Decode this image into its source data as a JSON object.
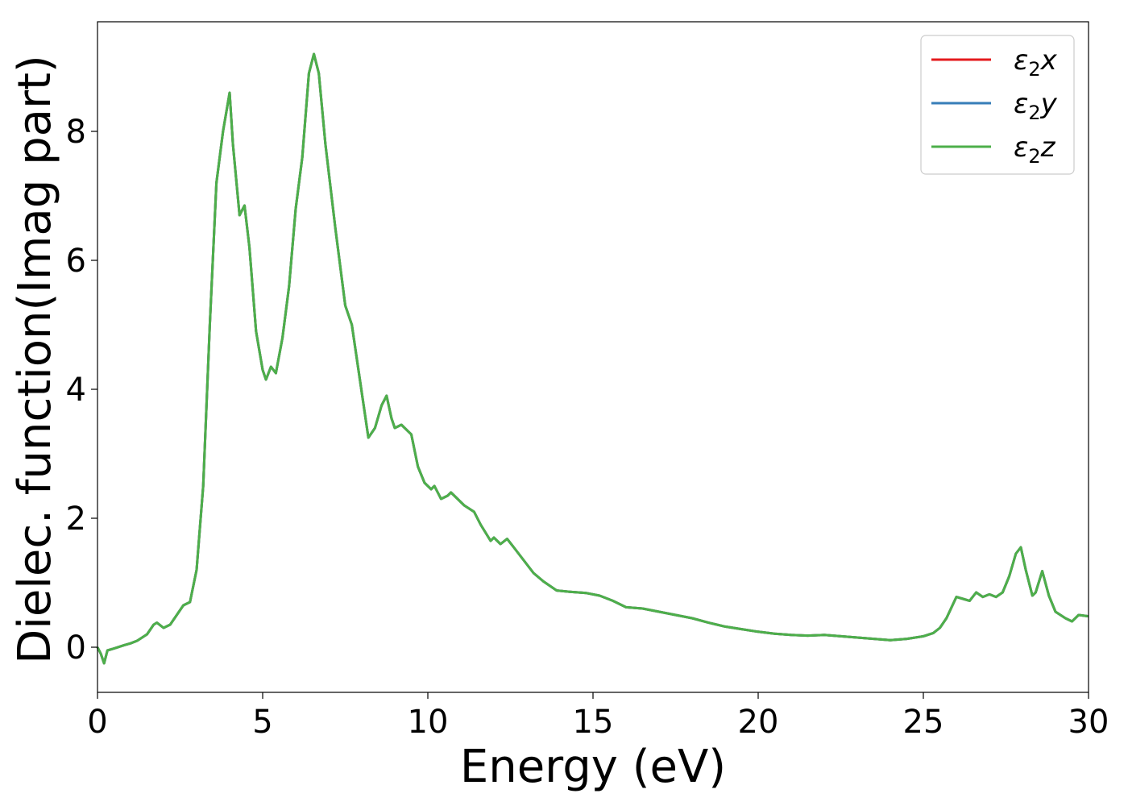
{
  "chart_data": {
    "type": "line",
    "title": "",
    "xlabel": "Energy (eV)",
    "ylabel": "Dielec. function(Imag part)",
    "xlim": [
      0,
      30
    ],
    "ylim": [
      -0.7,
      9.7
    ],
    "xticks": [
      0,
      5,
      10,
      15,
      20,
      25,
      30
    ],
    "xtick_labels": [
      "0",
      "5",
      "10",
      "15",
      "20",
      "25",
      "30"
    ],
    "yticks": [
      0,
      2,
      4,
      6,
      8
    ],
    "ytick_labels": [
      "0",
      "2",
      "4",
      "6",
      "8"
    ],
    "grid": false,
    "legend_position": "top-right",
    "x": [
      0,
      0.1,
      0.2,
      0.3,
      0.5,
      0.8,
      1.0,
      1.2,
      1.5,
      1.7,
      1.8,
      2.0,
      2.2,
      2.4,
      2.6,
      2.8,
      3.0,
      3.2,
      3.4,
      3.6,
      3.8,
      4.0,
      4.1,
      4.3,
      4.45,
      4.6,
      4.8,
      5.0,
      5.1,
      5.25,
      5.4,
      5.6,
      5.8,
      6.0,
      6.2,
      6.4,
      6.55,
      6.7,
      6.9,
      7.2,
      7.5,
      7.7,
      7.9,
      8.1,
      8.2,
      8.4,
      8.6,
      8.75,
      8.9,
      9.0,
      9.2,
      9.5,
      9.7,
      9.9,
      10.1,
      10.2,
      10.4,
      10.6,
      10.7,
      10.9,
      11.1,
      11.4,
      11.6,
      11.9,
      12.0,
      12.2,
      12.4,
      12.6,
      12.9,
      13.2,
      13.5,
      13.9,
      14.3,
      14.8,
      15.2,
      15.6,
      16.0,
      16.5,
      17.0,
      17.5,
      18.0,
      18.5,
      19.0,
      19.5,
      20.0,
      20.5,
      21.0,
      21.5,
      22.0,
      22.5,
      23.0,
      23.5,
      24.0,
      24.5,
      25.0,
      25.3,
      25.5,
      25.7,
      26.0,
      26.2,
      26.4,
      26.6,
      26.8,
      27.0,
      27.2,
      27.4,
      27.6,
      27.8,
      27.95,
      28.1,
      28.3,
      28.4,
      28.6,
      28.8,
      29.0,
      29.3,
      29.5,
      29.7,
      30.0
    ],
    "series": [
      {
        "name": "ε₂x",
        "color": "#e41a1c",
        "y": [
          0,
          -0.1,
          -0.25,
          -0.05,
          -0.02,
          0.03,
          0.06,
          0.1,
          0.2,
          0.35,
          0.38,
          0.3,
          0.35,
          0.5,
          0.65,
          0.7,
          1.2,
          2.5,
          5.0,
          7.2,
          8.0,
          8.6,
          7.8,
          6.7,
          6.85,
          6.2,
          4.9,
          4.3,
          4.15,
          4.35,
          4.25,
          4.8,
          5.6,
          6.8,
          7.6,
          8.9,
          9.2,
          8.9,
          7.8,
          6.5,
          5.3,
          5.0,
          4.3,
          3.6,
          3.25,
          3.4,
          3.75,
          3.9,
          3.55,
          3.4,
          3.45,
          3.3,
          2.8,
          2.55,
          2.45,
          2.5,
          2.3,
          2.35,
          2.4,
          2.3,
          2.2,
          2.1,
          1.9,
          1.65,
          1.7,
          1.6,
          1.68,
          1.55,
          1.35,
          1.15,
          1.02,
          0.88,
          0.86,
          0.84,
          0.8,
          0.72,
          0.62,
          0.6,
          0.55,
          0.5,
          0.45,
          0.38,
          0.32,
          0.28,
          0.24,
          0.21,
          0.19,
          0.18,
          0.19,
          0.17,
          0.15,
          0.13,
          0.11,
          0.13,
          0.17,
          0.22,
          0.3,
          0.45,
          0.78,
          0.75,
          0.72,
          0.85,
          0.78,
          0.82,
          0.78,
          0.85,
          1.1,
          1.45,
          1.55,
          1.2,
          0.8,
          0.85,
          1.18,
          0.8,
          0.55,
          0.45,
          0.4,
          0.5,
          0.48
        ]
      },
      {
        "name": "ε₂y",
        "color": "#377eb8",
        "y": [
          0,
          -0.1,
          -0.25,
          -0.05,
          -0.02,
          0.03,
          0.06,
          0.1,
          0.2,
          0.35,
          0.38,
          0.3,
          0.35,
          0.5,
          0.65,
          0.7,
          1.2,
          2.5,
          5.0,
          7.2,
          8.0,
          8.6,
          7.8,
          6.7,
          6.85,
          6.2,
          4.9,
          4.3,
          4.15,
          4.35,
          4.25,
          4.8,
          5.6,
          6.8,
          7.6,
          8.9,
          9.2,
          8.9,
          7.8,
          6.5,
          5.3,
          5.0,
          4.3,
          3.6,
          3.25,
          3.4,
          3.75,
          3.9,
          3.55,
          3.4,
          3.45,
          3.3,
          2.8,
          2.55,
          2.45,
          2.5,
          2.3,
          2.35,
          2.4,
          2.3,
          2.2,
          2.1,
          1.9,
          1.65,
          1.7,
          1.6,
          1.68,
          1.55,
          1.35,
          1.15,
          1.02,
          0.88,
          0.86,
          0.84,
          0.8,
          0.72,
          0.62,
          0.6,
          0.55,
          0.5,
          0.45,
          0.38,
          0.32,
          0.28,
          0.24,
          0.21,
          0.19,
          0.18,
          0.19,
          0.17,
          0.15,
          0.13,
          0.11,
          0.13,
          0.17,
          0.22,
          0.3,
          0.45,
          0.78,
          0.75,
          0.72,
          0.85,
          0.78,
          0.82,
          0.78,
          0.85,
          1.1,
          1.45,
          1.55,
          1.2,
          0.8,
          0.85,
          1.18,
          0.8,
          0.55,
          0.45,
          0.4,
          0.5,
          0.48
        ]
      },
      {
        "name": "ε₂z",
        "color": "#4daf4a",
        "y": [
          0,
          -0.1,
          -0.25,
          -0.05,
          -0.02,
          0.03,
          0.06,
          0.1,
          0.2,
          0.35,
          0.38,
          0.3,
          0.35,
          0.5,
          0.65,
          0.7,
          1.2,
          2.5,
          5.0,
          7.2,
          8.0,
          8.6,
          7.8,
          6.7,
          6.85,
          6.2,
          4.9,
          4.3,
          4.15,
          4.35,
          4.25,
          4.8,
          5.6,
          6.8,
          7.6,
          8.9,
          9.2,
          8.9,
          7.8,
          6.5,
          5.3,
          5.0,
          4.3,
          3.6,
          3.25,
          3.4,
          3.75,
          3.9,
          3.55,
          3.4,
          3.45,
          3.3,
          2.8,
          2.55,
          2.45,
          2.5,
          2.3,
          2.35,
          2.4,
          2.3,
          2.2,
          2.1,
          1.9,
          1.65,
          1.7,
          1.6,
          1.68,
          1.55,
          1.35,
          1.15,
          1.02,
          0.88,
          0.86,
          0.84,
          0.8,
          0.72,
          0.62,
          0.6,
          0.55,
          0.5,
          0.45,
          0.38,
          0.32,
          0.28,
          0.24,
          0.21,
          0.19,
          0.18,
          0.19,
          0.17,
          0.15,
          0.13,
          0.11,
          0.13,
          0.17,
          0.22,
          0.3,
          0.45,
          0.78,
          0.75,
          0.72,
          0.85,
          0.78,
          0.82,
          0.78,
          0.85,
          1.1,
          1.45,
          1.55,
          1.2,
          0.8,
          0.85,
          1.18,
          0.8,
          0.55,
          0.45,
          0.4,
          0.5,
          0.48
        ]
      }
    ],
    "legend": {
      "entries": [
        {
          "base": "ε",
          "sub": "2",
          "var": "x",
          "color": "#e41a1c"
        },
        {
          "base": "ε",
          "sub": "2",
          "var": "y",
          "color": "#377eb8"
        },
        {
          "base": "ε",
          "sub": "2",
          "var": "z",
          "color": "#4daf4a"
        }
      ]
    }
  }
}
